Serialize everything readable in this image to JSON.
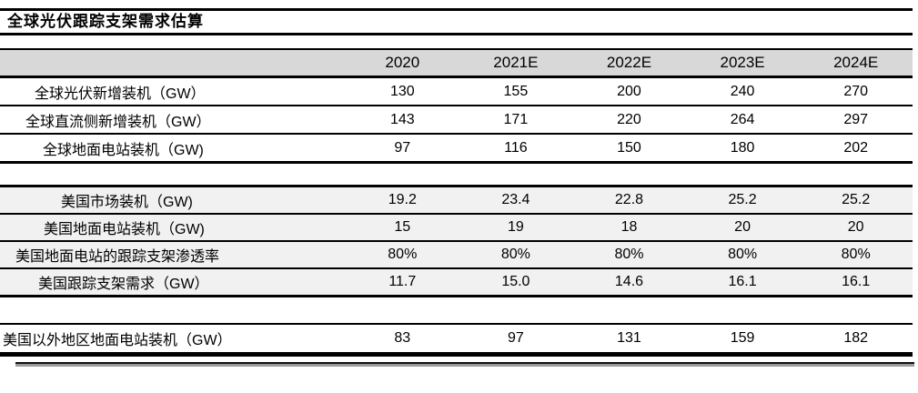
{
  "title": "全球光伏跟踪支架需求估算",
  "table": {
    "col_headers": [
      "2020",
      "2021E",
      "2022E",
      "2023E",
      "2024E"
    ],
    "sections": [
      {
        "name": "global",
        "rows": [
          {
            "label": "全球光伏新增装机（GW）",
            "indent": 38,
            "values": [
              "130",
              "155",
              "200",
              "240",
              "270"
            ]
          },
          {
            "label": "全球直流侧新增装机（GW）",
            "indent": 28,
            "values": [
              "143",
              "171",
              "220",
              "264",
              "297"
            ]
          },
          {
            "label": "全球地面电站装机（GW)",
            "indent": 47,
            "values": [
              "97",
              "116",
              "150",
              "180",
              "202"
            ]
          }
        ]
      },
      {
        "name": "us",
        "rows": [
          {
            "label": "美国市场装机（GW)",
            "indent": 67,
            "values": [
              "19.2",
              "23.4",
              "22.8",
              "25.2",
              "25.2"
            ]
          },
          {
            "label": "美国地面电站装机（GW)",
            "indent": 48,
            "values": [
              "15",
              "19",
              "18",
              "20",
              "20"
            ]
          },
          {
            "label": "美国地面电站的跟踪支架渗透率",
            "indent": 17,
            "values": [
              "80%",
              "80%",
              "80%",
              "80%",
              "80%"
            ]
          },
          {
            "label": "美国跟踪支架需求（GW）",
            "indent": 42,
            "values": [
              "11.7",
              "15.0",
              "14.6",
              "16.1",
              "16.1"
            ]
          }
        ]
      },
      {
        "name": "ex-us",
        "rows": [
          {
            "label": "美国以外地区地面电站装机（GW）",
            "indent": 3,
            "values": [
              "83",
              "97",
              "131",
              "159",
              "182"
            ]
          }
        ]
      }
    ]
  },
  "colors": {
    "header_bg": "#d8d8d8",
    "us_section_bg": "#f1f1f1",
    "rule": "#000000",
    "shadow_bar_gray": "#9a9a9a"
  }
}
